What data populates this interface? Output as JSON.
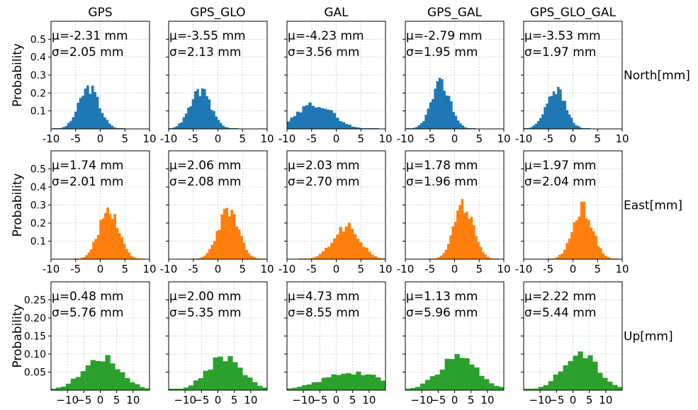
{
  "chart_data": {
    "type": "histogram-grid",
    "ylabel": "Probability",
    "columns": [
      "GPS",
      "GPS_GLO",
      "GAL",
      "GPS_GAL",
      "GPS_GLO_GAL"
    ],
    "rows": [
      {
        "label": "North[mm]",
        "color": "#1f77b4",
        "xlim": [
          -10,
          10
        ],
        "ylim": [
          0,
          0.6
        ],
        "xticks": [
          "-10",
          "-5",
          "0",
          "5",
          "10"
        ],
        "yticks": [
          "0.1",
          "0.2",
          "0.3",
          "0.4",
          "0.5"
        ],
        "ytick_values": [
          0.1,
          0.2,
          0.3,
          0.4,
          0.5
        ],
        "panels": [
          {
            "mu_text": "μ=-2.31 mm",
            "sigma_text": "σ=2.05 mm",
            "mean": -2.31,
            "std": 2.05,
            "peak": 0.23,
            "bins": 30
          },
          {
            "mu_text": "μ=-3.55 mm",
            "sigma_text": "σ=2.13 mm",
            "mean": -3.55,
            "std": 2.13,
            "peak": 0.21,
            "bins": 30
          },
          {
            "mu_text": "μ=-4.23 mm",
            "sigma_text": "σ=3.56 mm",
            "mean": -4.23,
            "std": 3.56,
            "peak": 0.14,
            "bins": 30
          },
          {
            "mu_text": "μ=-2.79 mm",
            "sigma_text": "σ=1.95 mm",
            "mean": -2.79,
            "std": 1.95,
            "peak": 0.25,
            "bins": 30
          },
          {
            "mu_text": "μ=-3.53 mm",
            "sigma_text": "σ=1.97 mm",
            "mean": -3.53,
            "std": 1.97,
            "peak": 0.22,
            "bins": 30
          }
        ]
      },
      {
        "label": "East[mm]",
        "color": "#ff7f0e",
        "xlim": [
          -10,
          10
        ],
        "ylim": [
          0,
          0.6
        ],
        "xticks": [
          "-10",
          "-5",
          "0",
          "5",
          "10"
        ],
        "yticks": [
          "0.1",
          "0.2",
          "0.3",
          "0.4",
          "0.5"
        ],
        "ytick_values": [
          0.1,
          0.2,
          0.3,
          0.4,
          0.5
        ],
        "panels": [
          {
            "mu_text": "μ=1.74 mm",
            "sigma_text": "σ=2.01 mm",
            "mean": 1.74,
            "std": 2.01,
            "peak": 0.28,
            "bins": 30
          },
          {
            "mu_text": "μ=2.06 mm",
            "sigma_text": "σ=2.08 mm",
            "mean": 2.06,
            "std": 2.08,
            "peak": 0.27,
            "bins": 30
          },
          {
            "mu_text": "μ=2.03 mm",
            "sigma_text": "σ=2.70 mm",
            "mean": 2.03,
            "std": 2.7,
            "peak": 0.18,
            "bins": 30
          },
          {
            "mu_text": "μ=1.78 mm",
            "sigma_text": "σ=1.96 mm",
            "mean": 1.78,
            "std": 1.96,
            "peak": 0.3,
            "bins": 30
          },
          {
            "mu_text": "μ=1.97 mm",
            "sigma_text": "σ=2.04 mm",
            "mean": 1.97,
            "std": 2.04,
            "peak": 0.28,
            "bins": 30
          }
        ]
      },
      {
        "label": "Up[mm]",
        "color": "#2ca02c",
        "xlim": [
          -15,
          15
        ],
        "ylim": [
          0,
          0.3
        ],
        "xticks": [
          "−10",
          "−5",
          "0",
          "5",
          "10"
        ],
        "xtick_values": [
          -10,
          -5,
          0,
          5,
          10
        ],
        "yticks": [
          "0.05",
          "0.10",
          "0.15",
          "0.20",
          "0.25"
        ],
        "ytick_values": [
          0.05,
          0.1,
          0.15,
          0.2,
          0.25
        ],
        "panels": [
          {
            "mu_text": "μ=0.48 mm",
            "sigma_text": "σ=5.76 mm",
            "mean": 0.48,
            "std": 5.76,
            "peak": 0.09,
            "bins": 20
          },
          {
            "mu_text": "μ=2.00 mm",
            "sigma_text": "σ=5.35 mm",
            "mean": 2.0,
            "std": 5.35,
            "peak": 0.09,
            "bins": 20
          },
          {
            "mu_text": "μ=4.73 mm",
            "sigma_text": "σ=8.55 mm",
            "mean": 4.73,
            "std": 8.55,
            "peak": 0.05,
            "bins": 20
          },
          {
            "mu_text": "μ=1.13 mm",
            "sigma_text": "σ=5.96 mm",
            "mean": 1.13,
            "std": 5.96,
            "peak": 0.09,
            "bins": 20
          },
          {
            "mu_text": "μ=2.22 mm",
            "sigma_text": "σ=5.44 mm",
            "mean": 2.22,
            "std": 5.44,
            "peak": 0.1,
            "bins": 20
          }
        ]
      }
    ],
    "grid": true
  }
}
